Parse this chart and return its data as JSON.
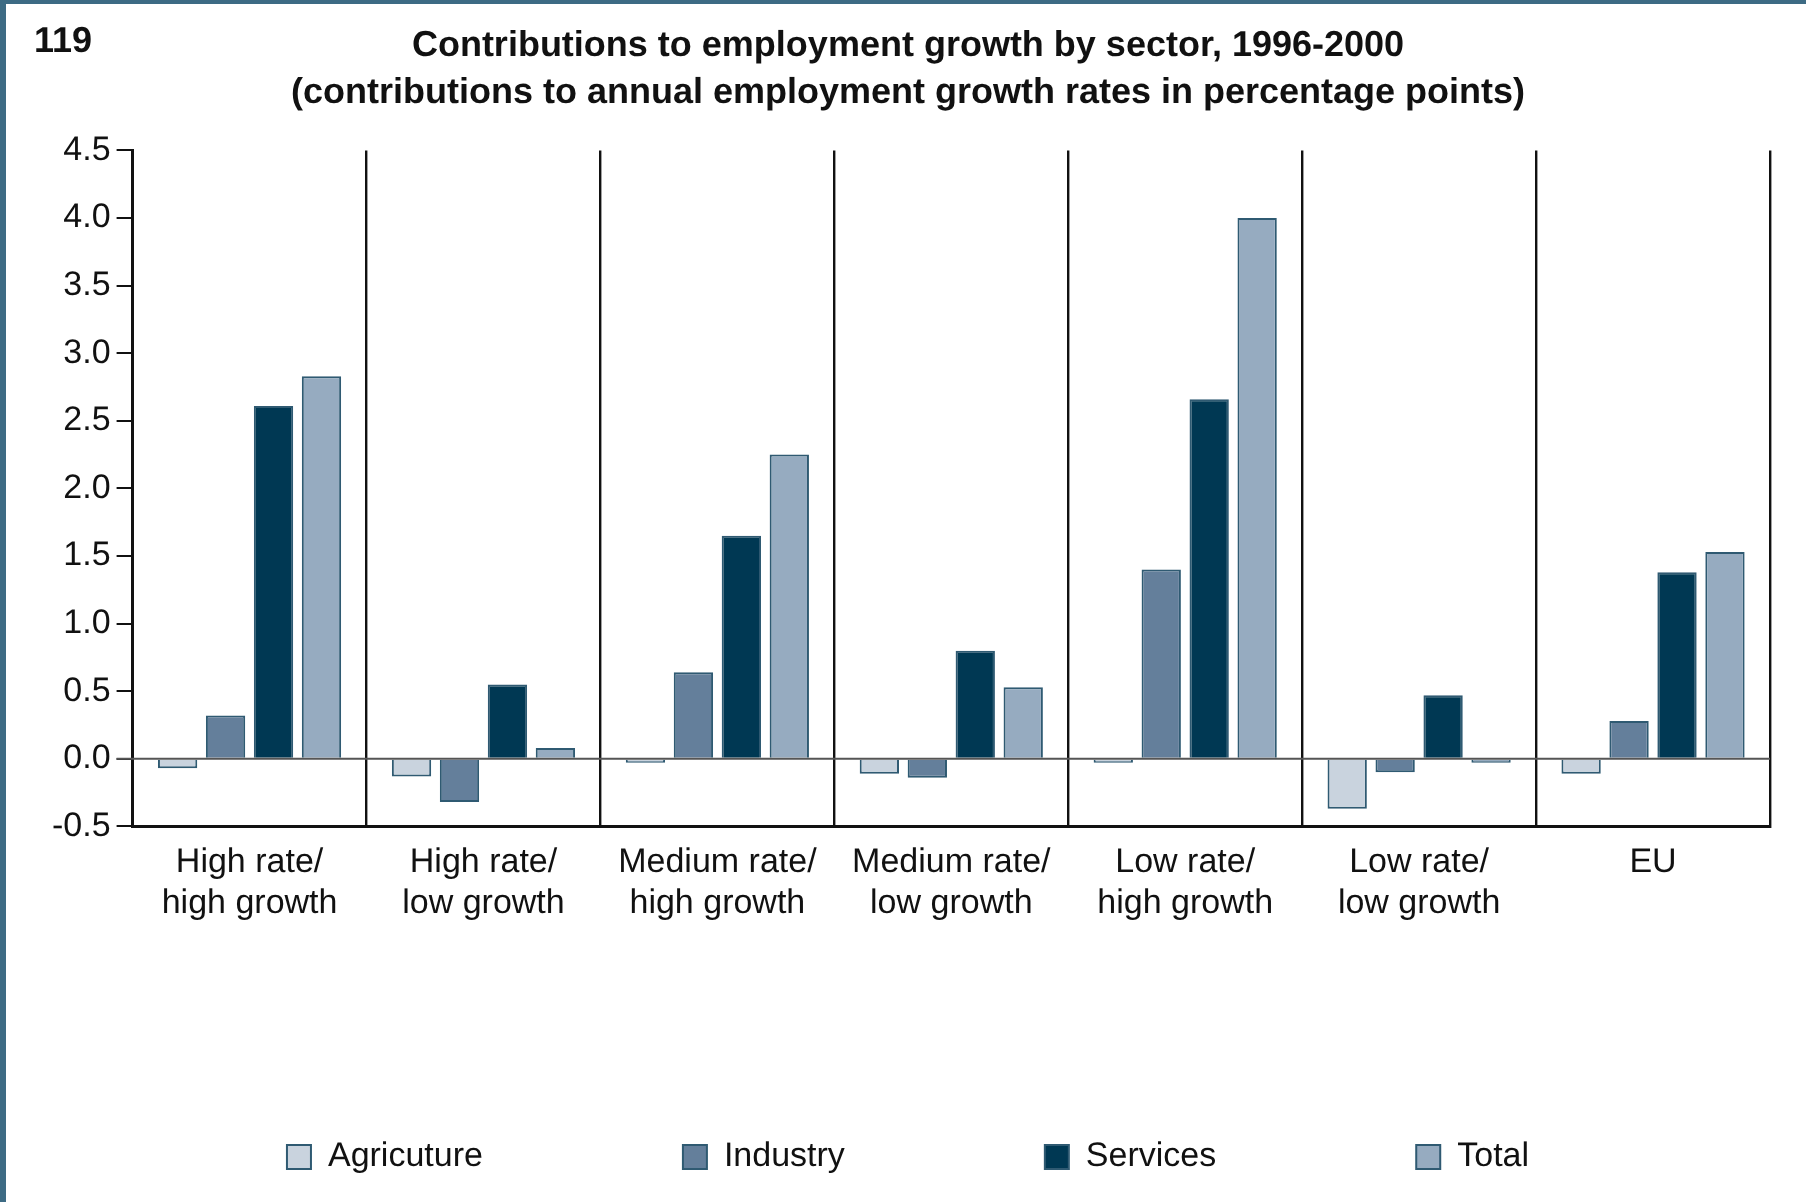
{
  "chart_data": {
    "type": "bar",
    "title": "Contributions to employment growth by sector, 1996-2000",
    "subtitle": "(contributions to annual employment growth rates in percentage points)",
    "annotations": [
      "119"
    ],
    "categories": [
      "High rate/high growth",
      "High rate/low growth",
      "Medium rate/high growth",
      "Medium rate/low growth",
      "Low rate/high growth",
      "Low rate/low growth",
      "EU"
    ],
    "series": [
      {
        "name": "Agricuture",
        "color": "#c9d3de",
        "values": [
          -0.07,
          -0.13,
          -0.03,
          -0.11,
          -0.03,
          -0.37,
          -0.11
        ]
      },
      {
        "name": "Industry",
        "color": "#647f9b",
        "values": [
          0.32,
          -0.32,
          0.64,
          -0.14,
          1.4,
          -0.1,
          0.28
        ]
      },
      {
        "name": "Services",
        "color": "#003853",
        "values": [
          2.61,
          0.55,
          1.65,
          0.8,
          2.66,
          0.47,
          1.38
        ]
      },
      {
        "name": "Total",
        "color": "#96abc0",
        "values": [
          2.83,
          0.08,
          2.25,
          0.53,
          4.0,
          -0.03,
          1.53
        ]
      }
    ],
    "ylim": [
      -0.5,
      4.5
    ],
    "yticks": [
      {
        "value": -0.5,
        "label": "-0.5"
      },
      {
        "value": 0,
        "label": "0.0"
      },
      {
        "value": 0.5,
        "label": "0.5"
      },
      {
        "value": 1,
        "label": "1.0"
      },
      {
        "value": 1.5,
        "label": "1.5"
      },
      {
        "value": 2,
        "label": "2.0"
      },
      {
        "value": 2.5,
        "label": "2.5"
      },
      {
        "value": 3,
        "label": "3.0"
      },
      {
        "value": 3.5,
        "label": "3.5"
      },
      {
        "value": 4,
        "label": "4.0"
      },
      {
        "value": 4.5,
        "label": "4.5"
      }
    ],
    "grid": "x",
    "legend": "bottom"
  }
}
